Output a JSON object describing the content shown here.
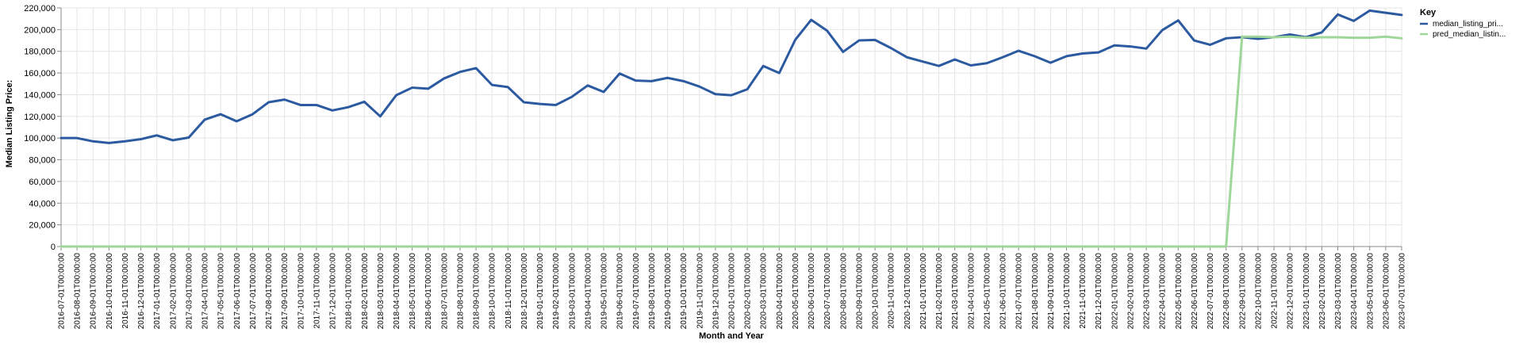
{
  "chart_data": {
    "type": "line",
    "xlabel": "Month and Year",
    "ylabel": "Median Listing Price:",
    "ylim": [
      0,
      220000
    ],
    "yticks": [
      0,
      20000,
      40000,
      60000,
      80000,
      100000,
      120000,
      140000,
      160000,
      180000,
      200000,
      220000
    ],
    "ytick_labels": [
      "0",
      "20,000",
      "40,000",
      "60,000",
      "80,000",
      "100,000",
      "120,000",
      "140,000",
      "160,000",
      "180,000",
      "200,000",
      "220,000"
    ],
    "grid": true,
    "legend_position": "right",
    "legend_title": "Key",
    "categories": [
      "2016-07-01T00:00:00",
      "2016-08-01T00:00:00",
      "2016-09-01T00:00:00",
      "2016-10-01T00:00:00",
      "2016-11-01T00:00:00",
      "2016-12-01T00:00:00",
      "2017-01-01T00:00:00",
      "2017-02-01T00:00:00",
      "2017-03-01T00:00:00",
      "2017-04-01T00:00:00",
      "2017-05-01T00:00:00",
      "2017-06-01T00:00:00",
      "2017-07-01T00:00:00",
      "2017-08-01T00:00:00",
      "2017-09-01T00:00:00",
      "2017-10-01T00:00:00",
      "2017-11-01T00:00:00",
      "2017-12-01T00:00:00",
      "2018-01-01T00:00:00",
      "2018-02-01T00:00:00",
      "2018-03-01T00:00:00",
      "2018-04-01T00:00:00",
      "2018-05-01T00:00:00",
      "2018-06-01T00:00:00",
      "2018-07-01T00:00:00",
      "2018-08-01T00:00:00",
      "2018-09-01T00:00:00",
      "2018-10-01T00:00:00",
      "2018-11-01T00:00:00",
      "2018-12-01T00:00:00",
      "2019-01-01T00:00:00",
      "2019-02-01T00:00:00",
      "2019-03-01T00:00:00",
      "2019-04-01T00:00:00",
      "2019-05-01T00:00:00",
      "2019-06-01T00:00:00",
      "2019-07-01T00:00:00",
      "2019-08-01T00:00:00",
      "2019-09-01T00:00:00",
      "2019-10-01T00:00:00",
      "2019-11-01T00:00:00",
      "2019-12-01T00:00:00",
      "2020-01-01T00:00:00",
      "2020-02-01T00:00:00",
      "2020-03-01T00:00:00",
      "2020-04-01T00:00:00",
      "2020-05-01T00:00:00",
      "2020-06-01T00:00:00",
      "2020-07-01T00:00:00",
      "2020-08-01T00:00:00",
      "2020-09-01T00:00:00",
      "2020-10-01T00:00:00",
      "2020-11-01T00:00:00",
      "2020-12-01T00:00:00",
      "2021-01-01T00:00:00",
      "2021-02-01T00:00:00",
      "2021-03-01T00:00:00",
      "2021-04-01T00:00:00",
      "2021-05-01T00:00:00",
      "2021-06-01T00:00:00",
      "2021-07-01T00:00:00",
      "2021-08-01T00:00:00",
      "2021-09-01T00:00:00",
      "2021-10-01T00:00:00",
      "2021-11-01T00:00:00",
      "2021-12-01T00:00:00",
      "2022-01-01T00:00:00",
      "2022-02-01T00:00:00",
      "2022-03-01T00:00:00",
      "2022-04-01T00:00:00",
      "2022-05-01T00:00:00",
      "2022-06-01T00:00:00",
      "2022-07-01T00:00:00",
      "2022-08-01T00:00:00",
      "2022-09-01T00:00:00",
      "2022-10-01T00:00:00",
      "2022-11-01T00:00:00",
      "2022-12-01T00:00:00",
      "2023-01-01T00:00:00",
      "2023-02-01T00:00:00",
      "2023-03-01T00:00:00",
      "2023-04-01T00:00:00",
      "2023-05-01T00:00:00",
      "2023-06-01T00:00:00",
      "2023-07-01T00:00:00"
    ],
    "series": [
      {
        "name": "median_listing_pri...",
        "color": "#2c5aa0",
        "values": [
          100000,
          100000,
          97000,
          95500,
          97000,
          99000,
          102500,
          98000,
          100500,
          117000,
          122000,
          115500,
          122000,
          133000,
          135500,
          130500,
          130500,
          125500,
          128500,
          133500,
          120000,
          139500,
          146500,
          145500,
          155000,
          161000,
          164500,
          149000,
          147000,
          133000,
          131500,
          130500,
          138000,
          148500,
          142500,
          159500,
          153000,
          152500,
          155500,
          152500,
          147500,
          140500,
          139500,
          145000,
          166500,
          160000,
          190500,
          209000,
          199000,
          179500,
          190000,
          190500,
          183000,
          174500,
          170500,
          166500,
          172500,
          167000,
          169000,
          174500,
          180500,
          175500,
          169500,
          175500,
          178000,
          179000,
          185500,
          184500,
          182500,
          199500,
          208500,
          190000,
          186000,
          192000,
          193000,
          191500,
          193000,
          195500,
          193000,
          197500,
          214000,
          208000,
          217500,
          215500,
          213500
        ]
      },
      {
        "name": "pred_median_listin...",
        "color": "#9fd79a",
        "values": [
          0,
          0,
          0,
          0,
          0,
          0,
          0,
          0,
          0,
          0,
          0,
          0,
          0,
          0,
          0,
          0,
          0,
          0,
          0,
          0,
          0,
          0,
          0,
          0,
          0,
          0,
          0,
          0,
          0,
          0,
          0,
          0,
          0,
          0,
          0,
          0,
          0,
          0,
          0,
          0,
          0,
          0,
          0,
          0,
          0,
          0,
          0,
          0,
          0,
          0,
          0,
          0,
          0,
          0,
          0,
          0,
          0,
          0,
          0,
          0,
          0,
          0,
          0,
          0,
          0,
          0,
          0,
          0,
          0,
          0,
          0,
          0,
          0,
          0,
          193500,
          193500,
          193000,
          193500,
          192500,
          193000,
          193000,
          192500,
          192500,
          193500,
          192000
        ]
      }
    ]
  }
}
